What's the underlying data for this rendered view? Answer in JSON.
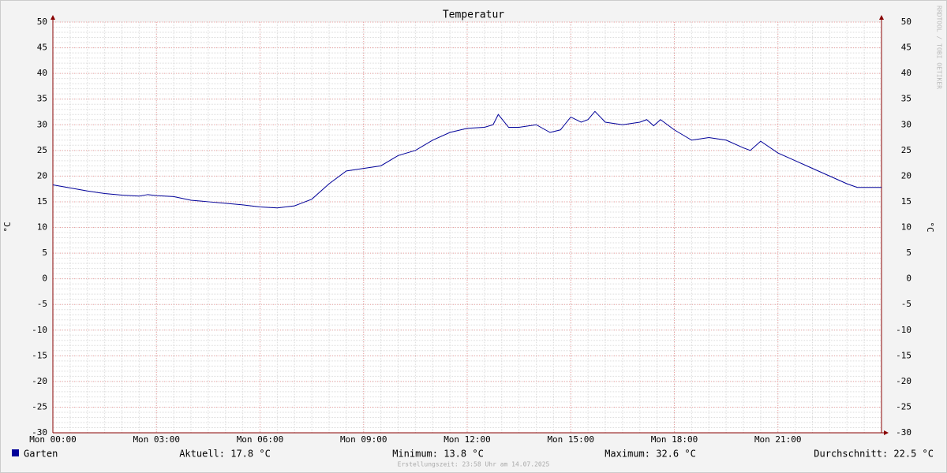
{
  "chart_data": {
    "type": "line",
    "title": "Temperatur",
    "ylabel": "°C",
    "watermark": "RRDTOOL / TOBI OETIKER",
    "x": [
      0,
      0.5,
      1,
      1.5,
      2,
      2.5,
      2.75,
      3,
      3.5,
      4,
      4.5,
      5,
      5.5,
      6,
      6.5,
      7,
      7.5,
      8,
      8.5,
      9,
      9.5,
      10,
      10.5,
      11,
      11.5,
      12,
      12.5,
      12.75,
      12.9,
      13.2,
      13.5,
      14,
      14.4,
      14.7,
      15,
      15.3,
      15.5,
      15.7,
      16,
      16.5,
      17,
      17.2,
      17.4,
      17.6,
      18,
      18.5,
      19,
      19.5,
      20,
      20.2,
      20.5,
      21,
      21.5,
      22,
      22.5,
      23,
      23.3,
      24
    ],
    "series": [
      {
        "name": "Garten",
        "color": "#000099",
        "values": [
          18.3,
          17.7,
          17.1,
          16.6,
          16.3,
          16.1,
          16.4,
          16.2,
          16.0,
          15.3,
          15.0,
          14.7,
          14.4,
          14.0,
          13.8,
          14.2,
          15.5,
          18.5,
          21.0,
          21.5,
          22.0,
          24.0,
          25.0,
          27.0,
          28.5,
          29.3,
          29.5,
          30.0,
          32.0,
          29.5,
          29.5,
          30.0,
          28.5,
          29.0,
          31.5,
          30.5,
          31.0,
          32.6,
          30.5,
          30.0,
          30.5,
          31.0,
          29.8,
          31.0,
          29.0,
          27.0,
          27.5,
          27.0,
          25.5,
          25.0,
          26.8,
          24.5,
          23.0,
          21.5,
          20.0,
          18.5,
          17.8,
          17.8
        ]
      }
    ],
    "xlim": [
      0,
      24
    ],
    "xticks": [
      {
        "value": 0,
        "label": "Mon 00:00"
      },
      {
        "value": 3,
        "label": "Mon 03:00"
      },
      {
        "value": 6,
        "label": "Mon 06:00"
      },
      {
        "value": 9,
        "label": "Mon 09:00"
      },
      {
        "value": 12,
        "label": "Mon 12:00"
      },
      {
        "value": 15,
        "label": "Mon 15:00"
      },
      {
        "value": 18,
        "label": "Mon 18:00"
      },
      {
        "value": 21,
        "label": "Mon 21:00"
      }
    ],
    "ylim": [
      -30,
      50
    ],
    "yticks": [
      -30,
      -25,
      -20,
      -15,
      -10,
      -5,
      0,
      5,
      10,
      15,
      20,
      25,
      30,
      35,
      40,
      45,
      50
    ],
    "grid": true,
    "stats": [
      "Aktuell: 17.8 °C",
      "Minimum: 13.8 °C",
      "Maximum: 32.6 °C",
      "Durchschnitt: 22.5 °C"
    ],
    "footer": "Erstellungszeit: 23:58 Uhr am 14.07.2025"
  }
}
